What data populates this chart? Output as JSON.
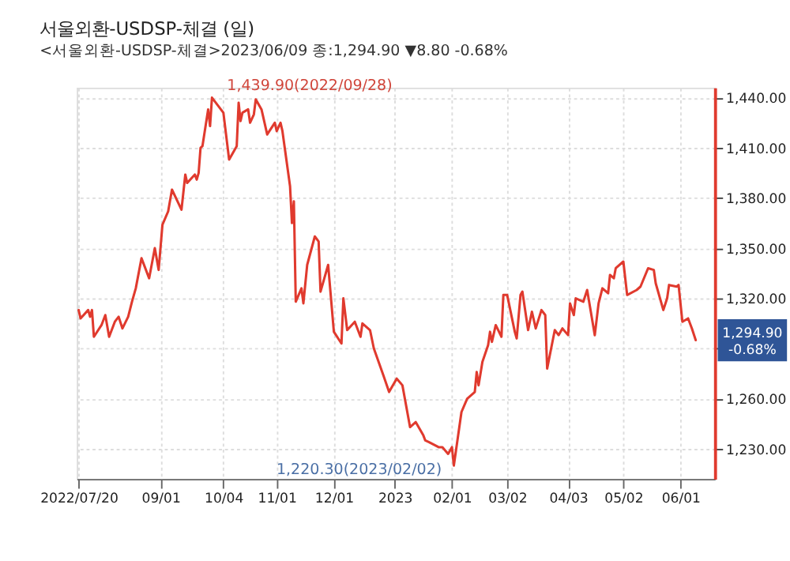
{
  "chart_data": {
    "type": "line",
    "title": "서울외환-USDSP-체결 (일)",
    "subtitle": "<서울외환-USDSP-체결>2023/06/09 종:1,294.90 ▼8.80 -0.68%",
    "x": [
      "2022-07-20",
      "2022-07-21",
      "2022-07-25",
      "2022-07-26",
      "2022-07-27",
      "2022-07-28",
      "2022-08-01",
      "2022-08-03",
      "2022-08-05",
      "2022-08-08",
      "2022-08-10",
      "2022-08-12",
      "2022-08-15",
      "2022-08-17",
      "2022-08-19",
      "2022-08-22",
      "2022-08-23",
      "2022-08-26",
      "2022-08-29",
      "2022-08-31",
      "2022-09-02",
      "2022-09-05",
      "2022-09-07",
      "2022-09-12",
      "2022-09-14",
      "2022-09-15",
      "2022-09-19",
      "2022-09-20",
      "2022-09-21",
      "2022-09-22",
      "2022-09-23",
      "2022-09-26",
      "2022-09-27",
      "2022-09-28",
      "2022-10-04",
      "2022-10-07",
      "2022-10-11",
      "2022-10-12",
      "2022-10-13",
      "2022-10-14",
      "2022-10-17",
      "2022-10-18",
      "2022-10-20",
      "2022-10-21",
      "2022-10-24",
      "2022-10-27",
      "2022-10-31",
      "2022-11-01",
      "2022-11-03",
      "2022-11-04",
      "2022-11-08",
      "2022-11-09",
      "2022-11-10",
      "2022-11-11",
      "2022-11-14",
      "2022-11-15",
      "2022-11-17",
      "2022-11-21",
      "2022-11-23",
      "2022-11-24",
      "2022-11-28",
      "2022-12-01",
      "2022-12-05",
      "2022-12-06",
      "2022-12-08",
      "2022-12-12",
      "2022-12-15",
      "2022-12-16",
      "2022-12-20",
      "2022-12-22",
      "2022-12-27",
      "2022-12-30",
      "2023-01-03",
      "2023-01-06",
      "2023-01-10",
      "2023-01-13",
      "2023-01-17",
      "2023-01-18",
      "2023-01-20",
      "2023-01-25",
      "2023-01-27",
      "2023-01-30",
      "2023-02-01",
      "2023-02-02",
      "2023-02-06",
      "2023-02-09",
      "2023-02-13",
      "2023-02-14",
      "2023-02-15",
      "2023-02-17",
      "2023-02-20",
      "2023-02-21",
      "2023-02-22",
      "2023-02-24",
      "2023-02-27",
      "2023-02-28",
      "2023-03-02",
      "2023-03-06",
      "2023-03-07",
      "2023-03-09",
      "2023-03-10",
      "2023-03-13",
      "2023-03-15",
      "2023-03-17",
      "2023-03-20",
      "2023-03-22",
      "2023-03-23",
      "2023-03-27",
      "2023-03-29",
      "2023-03-31",
      "2023-04-03",
      "2023-04-04",
      "2023-04-06",
      "2023-04-07",
      "2023-04-11",
      "2023-04-13",
      "2023-04-17",
      "2023-04-19",
      "2023-04-21",
      "2023-04-24",
      "2023-04-25",
      "2023-04-27",
      "2023-04-28",
      "2023-05-02",
      "2023-05-04",
      "2023-05-09",
      "2023-05-11",
      "2023-05-15",
      "2023-05-18",
      "2023-05-19",
      "2023-05-23",
      "2023-05-25",
      "2023-05-26",
      "2023-05-30",
      "2023-05-31",
      "2023-06-02",
      "2023-06-05",
      "2023-06-07",
      "2023-06-09"
    ],
    "series": [
      {
        "color": "#e03a2e",
        "values": [
          1313,
          1308,
          1313,
          1309,
          1313,
          1297,
          1304,
          1310,
          1297,
          1306,
          1309,
          1302,
          1309,
          1318,
          1326,
          1344,
          1341,
          1332,
          1350,
          1337,
          1364,
          1372,
          1385,
          1373,
          1394,
          1389,
          1394,
          1391,
          1395,
          1410,
          1411,
          1433,
          1423,
          1440,
          1431,
          1403,
          1411,
          1437,
          1426,
          1431,
          1433,
          1425,
          1430,
          1439,
          1433,
          1418,
          1425,
          1420,
          1425,
          1420,
          1387,
          1365,
          1378,
          1318,
          1326,
          1317,
          1340,
          1357,
          1354,
          1324,
          1340,
          1300,
          1293,
          1320,
          1301,
          1306,
          1297,
          1305,
          1301,
          1290,
          1274,
          1264,
          1272,
          1268,
          1243,
          1246,
          1238,
          1235,
          1234,
          1231,
          1231,
          1227,
          1231,
          1220,
          1252,
          1260,
          1264,
          1276,
          1268,
          1282,
          1292,
          1300,
          1294,
          1304,
          1297,
          1322,
          1322,
          1300,
          1296,
          1322,
          1324,
          1301,
          1312,
          1302,
          1313,
          1310,
          1278,
          1301,
          1298,
          1302,
          1298,
          1317,
          1310,
          1320,
          1318,
          1325,
          1298,
          1317,
          1326,
          1323,
          1334,
          1332,
          1338,
          1342,
          1322,
          1325,
          1327,
          1338,
          1337,
          1329,
          1313,
          1320,
          1328,
          1327,
          1328,
          1306,
          1308,
          1302,
          1295
        ]
      }
    ],
    "xlim": [
      "2022-07-19",
      "2023-06-19"
    ],
    "xticks": [
      {
        "value": "2022-07-20",
        "label": "2022/07/20"
      },
      {
        "value": "2022-09-01",
        "label": "09/01"
      },
      {
        "value": "2022-10-04",
        "label": "10/04"
      },
      {
        "value": "2022-11-01",
        "label": "11/01"
      },
      {
        "value": "2022-12-01",
        "label": "12/01"
      },
      {
        "value": "2023-01-02",
        "label": "2023"
      },
      {
        "value": "2023-02-01",
        "label": "02/01"
      },
      {
        "value": "2023-03-02",
        "label": "03/02"
      },
      {
        "value": "2023-04-03",
        "label": "04/03"
      },
      {
        "value": "2023-05-02",
        "label": "05/02"
      },
      {
        "value": "2023-06-01",
        "label": "06/01"
      }
    ],
    "ylim": [
      1212,
      1446
    ],
    "yticks": [
      {
        "value": 1230,
        "label": "1,230.00"
      },
      {
        "value": 1260,
        "label": "1,260.00"
      },
      {
        "value": 1290,
        "label": null
      },
      {
        "value": 1320,
        "label": "1,320.00"
      },
      {
        "value": 1350,
        "label": "1,350.00"
      },
      {
        "value": 1380,
        "label": "1,380.00"
      },
      {
        "value": 1410,
        "label": "1,410.00"
      },
      {
        "value": 1440,
        "label": "1,440.00"
      }
    ],
    "annotations": [
      {
        "text": "1,439.90(2022/09/28)",
        "x": "2022-09-28",
        "y": 1439.9
      },
      {
        "text": "1,220.30(2023/02/02)",
        "x": "2023-02-02",
        "y": 1220.3
      },
      {
        "text": "1,294.90\n-0.68%",
        "x": "2023-06-09",
        "y": 1294.9
      }
    ],
    "grid": true,
    "line_style": "solid",
    "marker": "none"
  }
}
